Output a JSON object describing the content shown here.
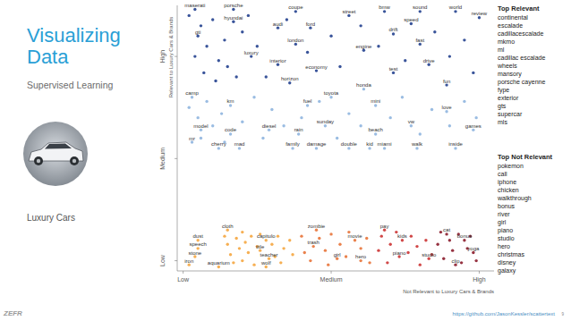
{
  "slide": {
    "title": "Visualizing Data",
    "subtitle": "Supervised Learning",
    "caption": "Luxury Cars",
    "logo": "ZEFR",
    "url": "https://github.com/JasonKessler/scattertext",
    "page": "9",
    "top_relevant": {
      "heading": "Top Relevant",
      "terms": [
        "continental",
        "escalade",
        "cadillacescalade",
        "mkmo",
        "ml",
        "cadillac escalade",
        "wheels",
        "mansory",
        "porsche cayenne",
        "fype",
        "exterior",
        "gts",
        "supercar",
        "mls"
      ]
    },
    "top_not_relevant": {
      "heading": "Top Not Relevant",
      "terms": [
        "pokemon",
        "call",
        "iphone",
        "chicken",
        "walkthrough",
        "bonus",
        "river",
        "girl",
        "piano",
        "studio",
        "hero",
        "christmas",
        "disney",
        "galaxy"
      ]
    }
  },
  "chart_data": {
    "type": "scatter",
    "x_label": "Not Relevant to Luxury Cars & Brands",
    "y_label": "Relevant to Luxury Cars & Brands",
    "xlim": [
      -0.02,
      1.05
    ],
    "ylim": [
      -0.05,
      1.25
    ],
    "xticks": [
      {
        "value": 0,
        "label": "Low"
      },
      {
        "value": 0.5,
        "label": "Medium"
      },
      {
        "value": 1,
        "label": "High"
      }
    ],
    "yticks": [
      {
        "value": 0,
        "label": "Low"
      },
      {
        "value": 0.5,
        "label": "Medium"
      },
      {
        "value": 1,
        "label": "High"
      }
    ],
    "grid": false,
    "marker": "circle",
    "series": [
      {
        "color": "#24418f",
        "x": [
          0.04,
          0.17,
          0.38,
          0.56,
          0.68,
          0.8,
          0.92,
          1.0,
          0.17,
          0.32,
          0.43,
          0.77,
          0.71,
          0.05,
          0.38,
          0.8,
          0.61,
          0.23,
          0.32,
          0.45,
          0.71,
          0.83,
          0.36,
          0.89,
          0.02,
          0.06,
          0.08,
          0.1,
          0.12,
          0.14,
          0.2,
          0.22,
          0.07,
          0.11,
          0.15,
          0.25,
          0.28,
          0.35,
          0.42,
          0.5,
          0.53,
          0.6,
          0.66,
          0.75,
          0.85,
          0.9,
          0.95,
          0.98,
          0.04,
          0.18
        ],
        "values": [
          1.23,
          1.23,
          1.22,
          1.2,
          1.22,
          1.22,
          1.22,
          1.19,
          1.17,
          1.14,
          1.14,
          1.16,
          1.11,
          1.1,
          1.06,
          1.06,
          1.03,
          1.0,
          0.96,
          0.93,
          0.92,
          0.96,
          0.87,
          0.86,
          1.2,
          1.15,
          1.05,
          1.18,
          0.98,
          1.08,
          1.12,
          1.2,
          0.92,
          0.88,
          0.95,
          1.05,
          0.9,
          1.18,
          1.02,
          1.1,
          0.95,
          1.15,
          1.05,
          0.98,
          1.12,
          1.0,
          1.08,
          0.92,
          1.0,
          0.9
        ],
        "labels": [
          "maserati",
          "porsche",
          "coupe",
          "street",
          "bmw",
          "sound",
          "world",
          "review",
          "hyundai",
          "audi",
          "ford",
          "speed",
          "drift",
          "gti",
          "london",
          "fast",
          "engine",
          "luxury",
          "interior",
          "economy",
          "test",
          "drive",
          "horizon",
          "fun",
          null,
          null,
          null,
          null,
          null,
          null,
          null,
          null,
          null,
          null,
          null,
          null,
          null,
          null,
          null,
          null,
          null,
          null,
          null,
          null,
          null,
          null,
          null,
          null,
          null,
          null
        ]
      },
      {
        "color": "#8fb5df",
        "x": [
          0.61,
          0.5,
          0.03,
          0.16,
          0.65,
          0.42,
          0.89,
          0.06,
          0.16,
          0.29,
          0.39,
          0.48,
          0.65,
          0.77,
          0.98,
          0.03,
          0.12,
          0.19,
          0.37,
          0.45,
          0.56,
          0.63,
          0.68,
          0.79,
          0.92,
          0.02,
          0.05,
          0.08,
          0.1,
          0.13,
          0.2,
          0.24,
          0.27,
          0.3,
          0.34,
          0.4,
          0.46,
          0.52,
          0.56,
          0.6,
          0.7,
          0.74,
          0.8,
          0.84,
          0.9,
          0.95,
          0.99,
          0.06,
          0.14
        ],
        "values": [
          0.84,
          0.8,
          0.8,
          0.76,
          0.76,
          0.76,
          0.73,
          0.64,
          0.62,
          0.64,
          0.62,
          0.66,
          0.62,
          0.66,
          0.64,
          0.58,
          0.55,
          0.55,
          0.55,
          0.55,
          0.55,
          0.55,
          0.55,
          0.55,
          0.55,
          0.75,
          0.7,
          0.78,
          0.66,
          0.72,
          0.68,
          0.8,
          0.6,
          0.74,
          0.66,
          0.7,
          0.78,
          0.6,
          0.72,
          0.66,
          0.7,
          0.8,
          0.62,
          0.74,
          0.66,
          0.78,
          0.7,
          0.6,
          0.58
        ],
        "labels": [
          "honda",
          "toyota",
          "camp",
          "km",
          "mini",
          "fuel",
          "love",
          "model",
          "code",
          "diesel",
          "rain",
          "sunday",
          "beach",
          "vw",
          "games",
          "mr",
          "cherry",
          "mad",
          "family",
          "damage",
          "double",
          "kid",
          "miami",
          "walk",
          "inside",
          null,
          null,
          null,
          null,
          null,
          null,
          null,
          null,
          null,
          null,
          null,
          null,
          null,
          null,
          null,
          null,
          null,
          null,
          null,
          null,
          null,
          null,
          null,
          null
        ]
      },
      {
        "color": "#f5a640",
        "x": [
          0.05,
          0.05,
          0.04,
          0.02,
          0.12,
          0.15,
          0.28,
          0.26,
          0.29,
          0.28,
          0.14,
          0.15,
          0.16,
          0.17,
          0.18,
          0.19,
          0.2,
          0.2,
          0.21,
          0.22,
          0.23,
          0.24,
          0.25,
          0.26,
          0.3,
          0.31,
          0.32,
          0.33,
          0.34,
          0.36,
          0.37
        ],
        "values": [
          0.1,
          0.06,
          0.02,
          -0.02,
          -0.03,
          0.15,
          0.1,
          0.05,
          0.01,
          -0.03,
          0.12,
          0.08,
          0.03,
          -0.01,
          0.11,
          0.06,
          0.14,
          0.0,
          0.09,
          0.04,
          0.12,
          -0.02,
          0.07,
          0.13,
          0.08,
          0.02,
          0.12,
          -0.01,
          0.06,
          0.1,
          0.03
        ],
        "labels": [
          "dust",
          "speech",
          "stone",
          "iron",
          "aquarium",
          "cloth",
          "capitulo",
          "title",
          "teacher",
          "wolf",
          null,
          null,
          null,
          null,
          null,
          null,
          null,
          null,
          null,
          null,
          null,
          null,
          null,
          null,
          null,
          null,
          null,
          null,
          null,
          null,
          null
        ]
      },
      {
        "color": "#e8743a",
        "x": [
          0.45,
          0.44,
          0.58,
          0.52,
          0.6,
          0.4,
          0.41,
          0.43,
          0.46,
          0.48,
          0.49,
          0.5,
          0.53,
          0.55,
          0.56,
          0.6,
          0.62,
          0.63
        ],
        "values": [
          0.15,
          0.07,
          0.1,
          0.01,
          0.0,
          0.12,
          0.04,
          0.0,
          0.11,
          0.05,
          -0.02,
          0.13,
          0.08,
          0.02,
          0.14,
          0.06,
          0.11,
          -0.01
        ],
        "labels": [
          "zombie",
          "trash",
          "movie",
          "girl",
          "hero",
          null,
          null,
          null,
          null,
          null,
          null,
          null,
          null,
          null,
          null,
          null,
          null,
          null
        ]
      },
      {
        "color": "#cc3434",
        "x": [
          0.68,
          0.74,
          0.73,
          0.83,
          0.66,
          0.67,
          0.69,
          0.7,
          0.72,
          0.76,
          0.77,
          0.79,
          0.8,
          0.82,
          0.84
        ],
        "values": [
          0.15,
          0.1,
          0.02,
          0.01,
          0.05,
          0.12,
          -0.01,
          0.08,
          0.14,
          0.04,
          0.12,
          0.07,
          -0.02,
          0.1,
          0.03
        ],
        "labels": [
          "pay",
          "kids",
          "piano",
          "studio",
          null,
          null,
          null,
          null,
          null,
          null,
          null,
          null,
          null,
          null,
          null
        ]
      },
      {
        "color": "#8b1c2c",
        "x": [
          0.89,
          0.95,
          0.98,
          0.92,
          0.86,
          0.87,
          0.88,
          0.9,
          0.91,
          0.93,
          0.94,
          0.96,
          0.97,
          0.99
        ],
        "values": [
          0.13,
          0.1,
          0.04,
          -0.02,
          0.08,
          0.14,
          0.01,
          0.1,
          0.05,
          0.13,
          -0.01,
          0.06,
          0.12,
          0.0
        ],
        "labels": [
          "cat",
          "bonus",
          "yoga",
          "clip",
          null,
          null,
          null,
          null,
          null,
          null,
          null,
          null,
          null,
          null
        ]
      }
    ]
  }
}
